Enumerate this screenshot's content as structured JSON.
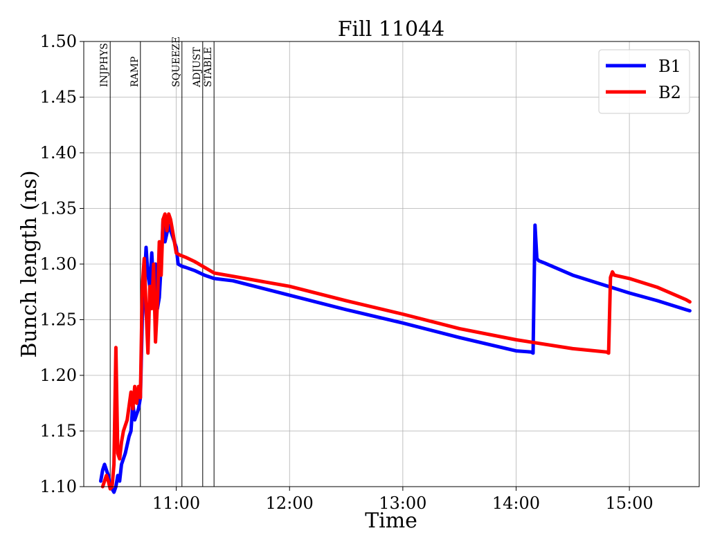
{
  "chart_data": {
    "type": "line",
    "title": "Fill 11044",
    "xlabel": "Time",
    "ylabel": "Bunch length (ns)",
    "xlim": [
      "10:11",
      "15:37"
    ],
    "ylim": [
      1.1,
      1.5
    ],
    "grid": true,
    "legend_position": "top-right",
    "x_ticks": [
      "11:00",
      "12:00",
      "13:00",
      "14:00",
      "15:00"
    ],
    "y_ticks": [
      "1.10",
      "1.15",
      "1.20",
      "1.25",
      "1.30",
      "1.35",
      "1.40",
      "1.45",
      "1.50"
    ],
    "phases": [
      {
        "label": "INJPHYS",
        "time": "10:25"
      },
      {
        "label": "RAMP",
        "time": "10:41"
      },
      {
        "label": "SQUEEZE",
        "time": "11:03"
      },
      {
        "label": "ADJUST",
        "time": "11:14"
      },
      {
        "label": "STABLE",
        "time": "11:20"
      }
    ],
    "series": [
      {
        "name": "B1",
        "color": "#0000ff",
        "x": [
          "10:20",
          "10:21",
          "10:22",
          "10:23",
          "10:24",
          "10:25",
          "10:26",
          "10:27",
          "10:28",
          "10:29",
          "10:30",
          "10:31",
          "10:33",
          "10:35",
          "10:36",
          "10:37",
          "10:38",
          "10:40",
          "10:41",
          "10:42",
          "10:43",
          "10:44",
          "10:45",
          "10:46",
          "10:47",
          "10:48",
          "10:49",
          "10:50",
          "10:51",
          "10:52",
          "10:53",
          "10:54",
          "10:56",
          "10:57",
          "10:58",
          "11:00",
          "11:01",
          "11:02",
          "11:03",
          "11:05",
          "11:10",
          "11:15",
          "11:20",
          "11:30",
          "12:00",
          "12:30",
          "13:00",
          "13:30",
          "14:00",
          "14:08",
          "14:09",
          "14:10",
          "14:11",
          "14:12",
          "14:15",
          "14:30",
          "15:00",
          "15:15",
          "15:30",
          "15:32"
        ],
        "y": [
          1.105,
          1.115,
          1.12,
          1.115,
          1.11,
          1.1,
          1.098,
          1.095,
          1.1,
          1.11,
          1.105,
          1.12,
          1.13,
          1.145,
          1.15,
          1.175,
          1.16,
          1.17,
          1.18,
          1.25,
          1.28,
          1.315,
          1.29,
          1.28,
          1.31,
          1.28,
          1.3,
          1.26,
          1.27,
          1.3,
          1.34,
          1.32,
          1.335,
          1.33,
          1.325,
          1.315,
          1.3,
          1.299,
          1.298,
          1.297,
          1.294,
          1.29,
          1.287,
          1.285,
          1.272,
          1.259,
          1.247,
          1.234,
          1.222,
          1.221,
          1.22,
          1.335,
          1.305,
          1.303,
          1.301,
          1.29,
          1.274,
          1.267,
          1.259,
          1.258
        ]
      },
      {
        "name": "B2",
        "color": "#ff0000",
        "x": [
          "10:21",
          "10:22",
          "10:23",
          "10:24",
          "10:25",
          "10:26",
          "10:27",
          "10:28",
          "10:29",
          "10:30",
          "10:31",
          "10:32",
          "10:34",
          "10:36",
          "10:37",
          "10:38",
          "10:39",
          "10:40",
          "10:41",
          "10:42",
          "10:43",
          "10:44",
          "10:45",
          "10:46",
          "10:47",
          "10:48",
          "10:49",
          "10:50",
          "10:51",
          "10:52",
          "10:53",
          "10:54",
          "10:55",
          "10:56",
          "10:57",
          "10:58",
          "11:00",
          "11:01",
          "11:02",
          "11:05",
          "11:10",
          "11:15",
          "11:20",
          "11:30",
          "12:00",
          "12:30",
          "13:00",
          "13:30",
          "14:00",
          "14:30",
          "14:48",
          "14:49",
          "14:50",
          "14:51",
          "14:52",
          "15:00",
          "15:15",
          "15:30",
          "15:32"
        ],
        "y": [
          1.1,
          1.105,
          1.11,
          1.105,
          1.098,
          1.1,
          1.12,
          1.225,
          1.13,
          1.125,
          1.14,
          1.15,
          1.16,
          1.185,
          1.17,
          1.19,
          1.175,
          1.19,
          1.18,
          1.28,
          1.305,
          1.26,
          1.22,
          1.28,
          1.26,
          1.3,
          1.23,
          1.265,
          1.32,
          1.29,
          1.34,
          1.345,
          1.33,
          1.345,
          1.34,
          1.33,
          1.31,
          1.309,
          1.308,
          1.306,
          1.302,
          1.297,
          1.292,
          1.289,
          1.28,
          1.267,
          1.255,
          1.242,
          1.232,
          1.224,
          1.221,
          1.22,
          1.288,
          1.293,
          1.29,
          1.287,
          1.279,
          1.268,
          1.266
        ]
      }
    ]
  }
}
